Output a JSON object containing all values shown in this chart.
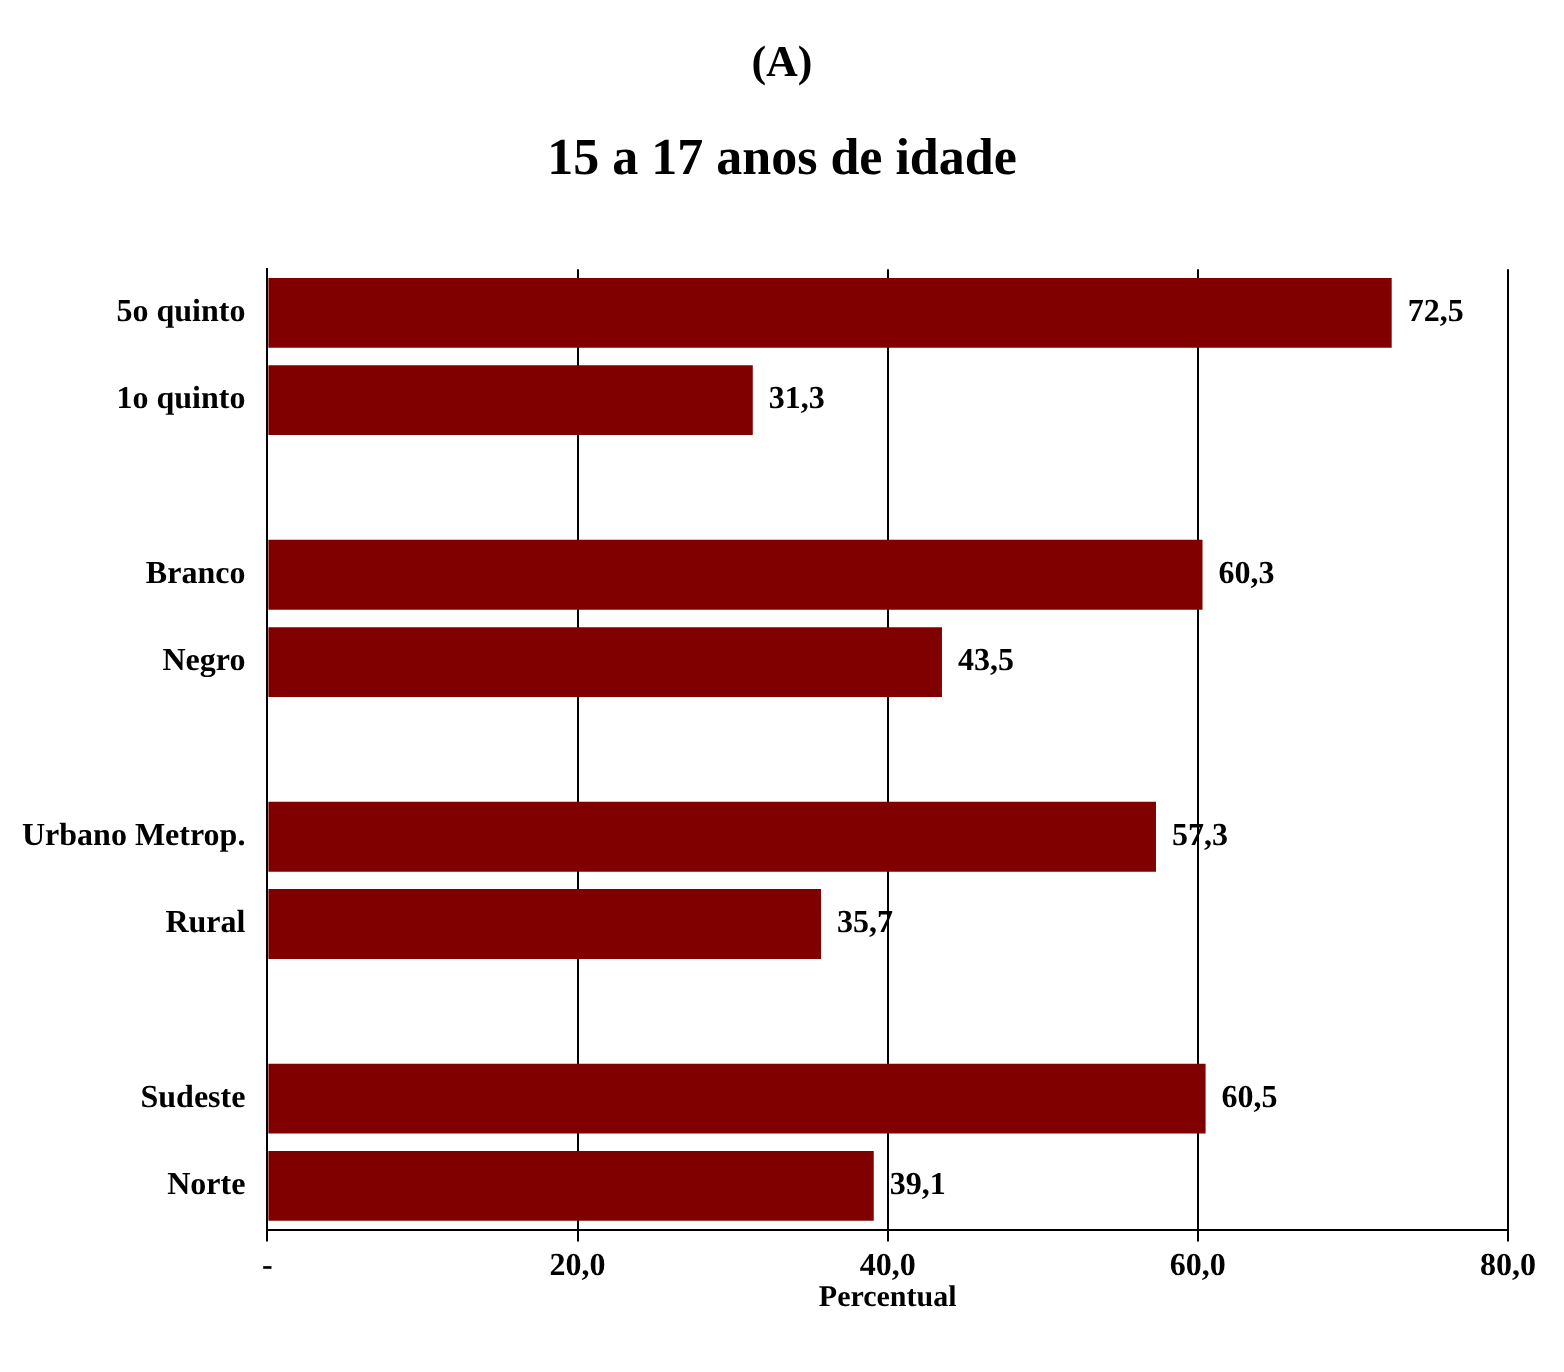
{
  "chart_data": {
    "type": "bar",
    "orientation": "horizontal",
    "title": "(A)",
    "subtitle": "15 a 17 anos de idade",
    "xlabel": "Percentual",
    "categories": [
      "5o quinto",
      "1o quinto",
      null,
      "Branco",
      "Negro",
      null,
      "Urbano Metrop.",
      "Rural",
      null,
      "Sudeste",
      "Norte"
    ],
    "values": [
      72.5,
      31.3,
      null,
      60.3,
      43.5,
      null,
      57.3,
      35.7,
      null,
      60.5,
      39.1
    ],
    "value_labels": [
      "72,5",
      "31,3",
      null,
      "60,3",
      "43,5",
      null,
      "57,3",
      "35,7",
      null,
      "60,5",
      "39,1"
    ],
    "color": "#800000",
    "xlim": [
      0,
      80
    ],
    "xticks": [
      {
        "value": 0,
        "label": "-"
      },
      {
        "value": 20,
        "label": "20,0"
      },
      {
        "value": 40,
        "label": "40,0"
      },
      {
        "value": 60,
        "label": "60,0"
      },
      {
        "value": 80,
        "label": "80,0"
      }
    ],
    "grid": "x",
    "legend": false
  }
}
